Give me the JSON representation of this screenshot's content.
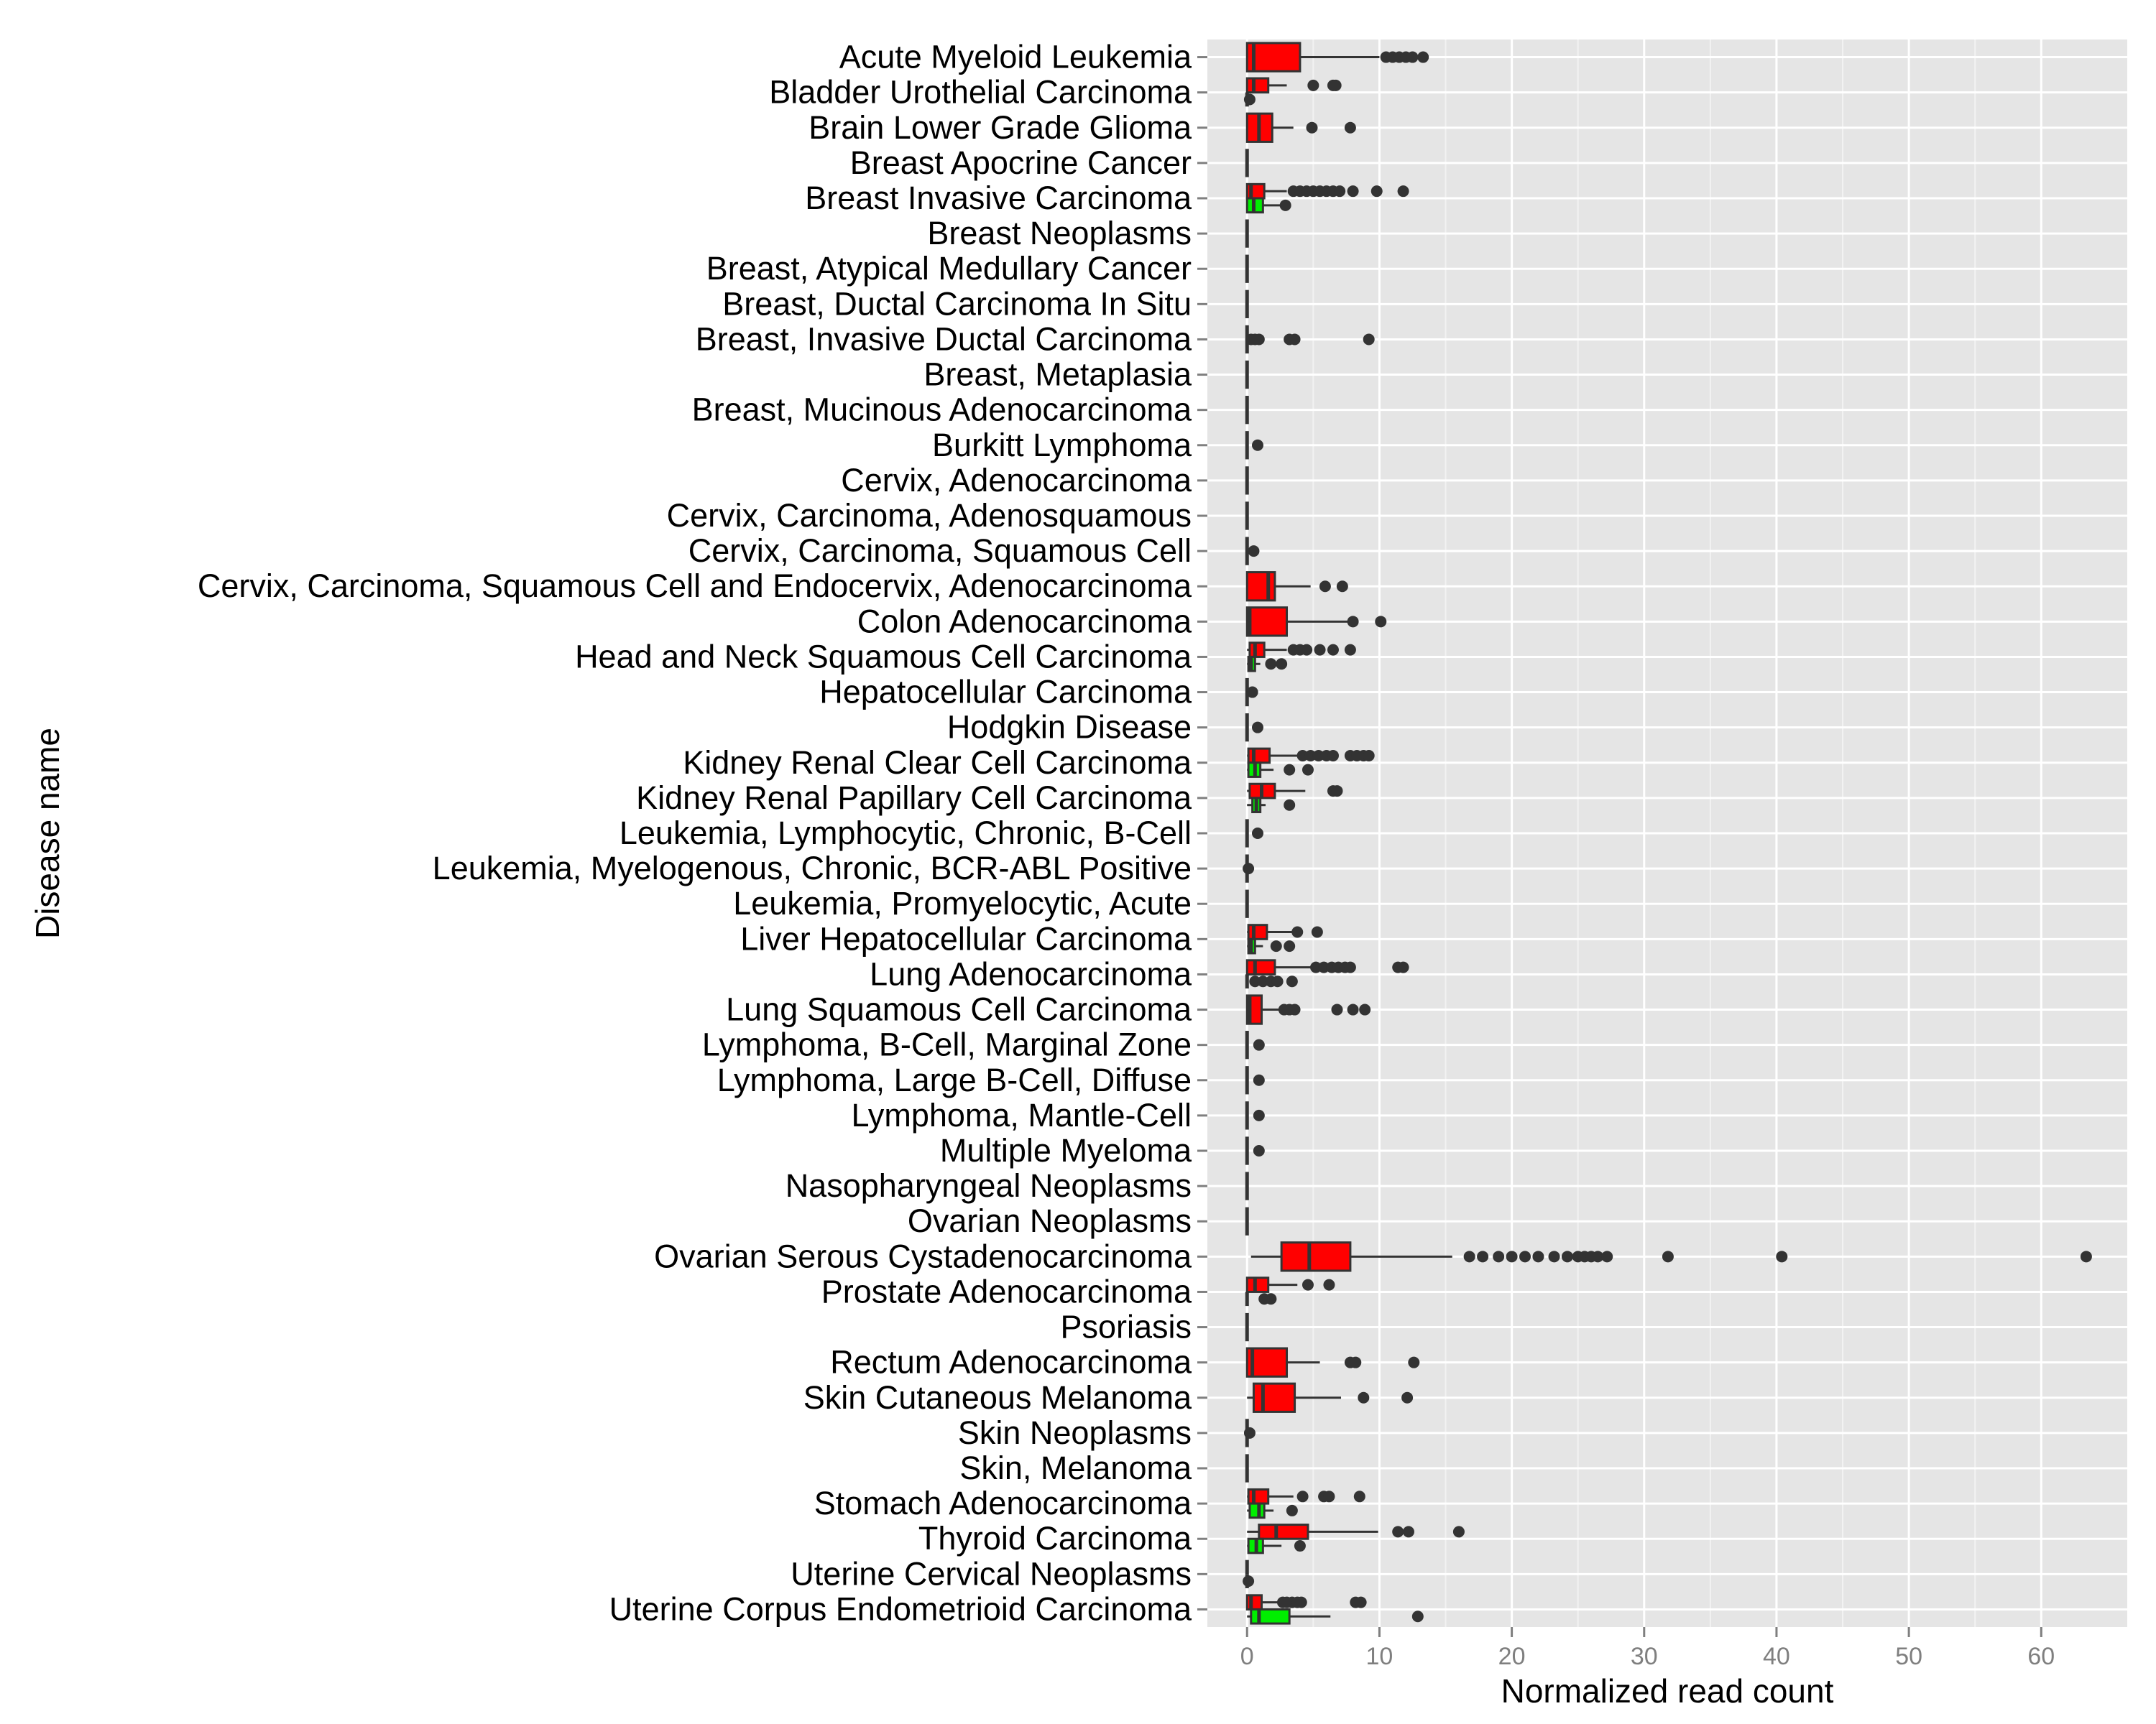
{
  "chart_data": {
    "type": "boxplot",
    "orientation": "horizontal",
    "xlabel": "Normalized read count",
    "ylabel": "Disease name",
    "xlim": [
      -3,
      66.5
    ],
    "x_ticks": [
      0,
      10,
      20,
      30,
      40,
      50,
      60
    ],
    "grid": true,
    "colors": {
      "panel": "#e5e5e5",
      "grid_major": "#ffffff",
      "grid_minor": "#f2f2f2",
      "box_a": "#ff0000",
      "box_b": "#00ee00",
      "line": "#333333",
      "outlier": "#333333",
      "tick": "#7f7f7f"
    },
    "categories": [
      "Acute Myeloid Leukemia",
      "Bladder Urothelial Carcinoma",
      "Brain Lower Grade Glioma",
      "Breast Apocrine Cancer",
      "Breast Invasive Carcinoma",
      "Breast Neoplasms",
      "Breast, Atypical Medullary Cancer",
      "Breast, Ductal Carcinoma In Situ",
      "Breast, Invasive Ductal Carcinoma",
      "Breast, Metaplasia",
      "Breast, Mucinous Adenocarcinoma",
      "Burkitt Lymphoma",
      "Cervix, Adenocarcinoma",
      "Cervix, Carcinoma, Adenosquamous",
      "Cervix, Carcinoma, Squamous Cell",
      "Cervix, Carcinoma, Squamous Cell and Endocervix, Adenocarcinoma",
      "Colon Adenocarcinoma",
      "Head and Neck Squamous Cell Carcinoma",
      "Hepatocellular Carcinoma",
      "Hodgkin Disease",
      "Kidney Renal Clear Cell Carcinoma",
      "Kidney Renal Papillary Cell Carcinoma",
      "Leukemia, Lymphocytic, Chronic, B-Cell",
      "Leukemia, Myelogenous, Chronic, BCR-ABL Positive",
      "Leukemia, Promyelocytic, Acute",
      "Liver Hepatocellular Carcinoma",
      "Lung Adenocarcinoma",
      "Lung Squamous Cell Carcinoma",
      "Lymphoma, B-Cell, Marginal Zone",
      "Lymphoma, Large B-Cell, Diffuse",
      "Lymphoma, Mantle-Cell",
      "Multiple Myeloma",
      "Nasopharyngeal Neoplasms",
      "Ovarian Neoplasms",
      "Ovarian Serous Cystadenocarcinoma",
      "Prostate Adenocarcinoma",
      "Psoriasis",
      "Rectum Adenocarcinoma",
      "Skin Cutaneous Melanoma",
      "Skin Neoplasms",
      "Skin, Melanoma",
      "Stomach Adenocarcinoma",
      "Thyroid Carcinoma",
      "Uterine Cervical Neoplasms",
      "Uterine Corpus Endometrioid Carcinoma"
    ],
    "series": [
      {
        "group": "a",
        "boxes": [
          {
            "cat": 0,
            "min": 0,
            "q1": 0,
            "median": 0.5,
            "q3": 4,
            "max": 10,
            "outliers": [
              10.5,
              11,
              11.5,
              12,
              12.5,
              13.3
            ]
          },
          {
            "cat": 1,
            "min": 0,
            "q1": 0,
            "median": 0.5,
            "q3": 1.6,
            "max": 3,
            "outliers": [
              5,
              6.5,
              6.7
            ]
          },
          {
            "cat": 2,
            "min": 0,
            "q1": 0,
            "median": 0.9,
            "q3": 1.9,
            "max": 3.5,
            "outliers": [
              4.9,
              7.8
            ]
          },
          {
            "cat": 3,
            "min": 0,
            "q1": 0,
            "median": 0,
            "q3": 0,
            "max": 0,
            "outliers": []
          },
          {
            "cat": 4,
            "min": 0,
            "q1": 0,
            "median": 0.3,
            "q3": 1.3,
            "max": 3,
            "outliers": [
              3.5,
              4,
              4.5,
              5,
              5.5,
              6,
              6.5,
              7,
              8,
              9.8,
              11.8
            ]
          },
          {
            "cat": 5,
            "min": 0,
            "q1": 0,
            "median": 0,
            "q3": 0,
            "max": 0,
            "outliers": []
          },
          {
            "cat": 6,
            "min": 0,
            "q1": 0,
            "median": 0,
            "q3": 0,
            "max": 0,
            "outliers": []
          },
          {
            "cat": 7,
            "min": 0,
            "q1": 0,
            "median": 0,
            "q3": 0,
            "max": 0,
            "outliers": []
          },
          {
            "cat": 8,
            "min": 0,
            "q1": 0,
            "median": 0,
            "q3": 0,
            "max": 0,
            "outliers": [
              0.3,
              0.6,
              0.9,
              3.2,
              3.6,
              9.2
            ]
          },
          {
            "cat": 9,
            "min": 0,
            "q1": 0,
            "median": 0,
            "q3": 0,
            "max": 0,
            "outliers": []
          },
          {
            "cat": 10,
            "min": 0,
            "q1": 0,
            "median": 0,
            "q3": 0,
            "max": 0,
            "outliers": []
          },
          {
            "cat": 11,
            "min": 0,
            "q1": 0,
            "median": 0,
            "q3": 0,
            "max": 0,
            "outliers": [
              0.8
            ]
          },
          {
            "cat": 12,
            "min": 0,
            "q1": 0,
            "median": 0,
            "q3": 0,
            "max": 0,
            "outliers": []
          },
          {
            "cat": 13,
            "min": 0,
            "q1": 0,
            "median": 0,
            "q3": 0,
            "max": 0,
            "outliers": []
          },
          {
            "cat": 14,
            "min": 0,
            "q1": 0,
            "median": 0,
            "q3": 0,
            "max": 0,
            "outliers": [
              0.5
            ]
          },
          {
            "cat": 15,
            "min": 0,
            "q1": 0,
            "median": 1.6,
            "q3": 2.1,
            "max": 4.8,
            "outliers": [
              5.9,
              7.2
            ]
          },
          {
            "cat": 16,
            "min": 0,
            "q1": 0,
            "median": 0.2,
            "q3": 3,
            "max": 7.7,
            "outliers": [
              8,
              10.1
            ]
          },
          {
            "cat": 17,
            "min": 0,
            "q1": 0.2,
            "median": 0.6,
            "q3": 1.3,
            "max": 3,
            "outliers": [
              3.5,
              4,
              4.5,
              5.5,
              6.5,
              7.8
            ]
          },
          {
            "cat": 18,
            "min": 0,
            "q1": 0,
            "median": 0,
            "q3": 0,
            "max": 0,
            "outliers": [
              0.4
            ]
          },
          {
            "cat": 19,
            "min": 0,
            "q1": 0,
            "median": 0,
            "q3": 0,
            "max": 0,
            "outliers": [
              0.8
            ]
          },
          {
            "cat": 20,
            "min": 0,
            "q1": 0.1,
            "median": 0.5,
            "q3": 1.7,
            "max": 4,
            "outliers": [
              4.2,
              4.8,
              5.4,
              6,
              6.5,
              7.8,
              8.3,
              8.8,
              9.2
            ]
          },
          {
            "cat": 21,
            "min": 0,
            "q1": 0.2,
            "median": 1.1,
            "q3": 2.1,
            "max": 4.4,
            "outliers": [
              6.5,
              6.8
            ]
          },
          {
            "cat": 22,
            "min": 0,
            "q1": 0,
            "median": 0,
            "q3": 0,
            "max": 0,
            "outliers": [
              0.8
            ]
          },
          {
            "cat": 23,
            "min": 0,
            "q1": 0,
            "median": 0,
            "q3": 0,
            "max": 0,
            "outliers": [
              0.1
            ]
          },
          {
            "cat": 24,
            "min": 0,
            "q1": 0,
            "median": 0,
            "q3": 0,
            "max": 0,
            "outliers": []
          },
          {
            "cat": 25,
            "min": 0,
            "q1": 0.1,
            "median": 0.5,
            "q3": 1.5,
            "max": 3.5,
            "outliers": [
              3.8,
              5.3
            ]
          },
          {
            "cat": 26,
            "min": 0,
            "q1": 0,
            "median": 0.6,
            "q3": 2.1,
            "max": 4.9,
            "outliers": [
              5.2,
              5.8,
              6.4,
              6.9,
              7.4,
              7.8,
              11.4,
              11.8
            ]
          },
          {
            "cat": 27,
            "min": 0,
            "q1": 0,
            "median": 0.2,
            "q3": 1.1,
            "max": 2.4,
            "outliers": [
              2.8,
              3.2,
              3.6,
              6.8,
              8,
              8.9
            ]
          },
          {
            "cat": 28,
            "min": 0,
            "q1": 0,
            "median": 0,
            "q3": 0,
            "max": 0,
            "outliers": [
              0.9
            ]
          },
          {
            "cat": 29,
            "min": 0,
            "q1": 0,
            "median": 0,
            "q3": 0,
            "max": 0,
            "outliers": [
              0.9
            ]
          },
          {
            "cat": 30,
            "min": 0,
            "q1": 0,
            "median": 0,
            "q3": 0,
            "max": 0,
            "outliers": [
              0.9
            ]
          },
          {
            "cat": 31,
            "min": 0,
            "q1": 0,
            "median": 0,
            "q3": 0,
            "max": 0,
            "outliers": [
              0.9
            ]
          },
          {
            "cat": 32,
            "min": 0,
            "q1": 0,
            "median": 0,
            "q3": 0,
            "max": 0,
            "outliers": []
          },
          {
            "cat": 33,
            "min": 0,
            "q1": 0,
            "median": 0,
            "q3": 0,
            "max": 0,
            "outliers": []
          },
          {
            "cat": 34,
            "min": 0.3,
            "q1": 2.6,
            "median": 4.7,
            "q3": 7.8,
            "max": 15.5,
            "outliers": [
              16.8,
              17.8,
              19,
              20,
              21,
              22,
              23.2,
              24.2,
              25,
              25.5,
              26,
              26.5,
              27.2,
              31.8,
              40.4,
              63.4
            ]
          },
          {
            "cat": 35,
            "min": 0,
            "q1": 0,
            "median": 0.6,
            "q3": 1.6,
            "max": 3.8,
            "outliers": [
              4.6,
              6.2
            ]
          },
          {
            "cat": 36,
            "min": 0,
            "q1": 0,
            "median": 0,
            "q3": 0,
            "max": 0,
            "outliers": []
          },
          {
            "cat": 37,
            "min": 0,
            "q1": 0,
            "median": 0.4,
            "q3": 3,
            "max": 5.5,
            "outliers": [
              7.8,
              8.2,
              12.6
            ]
          },
          {
            "cat": 38,
            "min": 0,
            "q1": 0.5,
            "median": 1.2,
            "q3": 3.6,
            "max": 7.1,
            "outliers": [
              8.8,
              12.1
            ]
          },
          {
            "cat": 39,
            "min": 0,
            "q1": 0,
            "median": 0,
            "q3": 0,
            "max": 0,
            "outliers": [
              0.2
            ]
          },
          {
            "cat": 40,
            "min": 0,
            "q1": 0,
            "median": 0,
            "q3": 0,
            "max": 0,
            "outliers": []
          },
          {
            "cat": 41,
            "min": 0,
            "q1": 0.1,
            "median": 0.5,
            "q3": 1.6,
            "max": 3.5,
            "outliers": [
              4.2,
              5.8,
              6.2,
              8.5
            ]
          },
          {
            "cat": 42,
            "min": 0,
            "q1": 0.9,
            "median": 2.2,
            "q3": 4.6,
            "max": 9.9,
            "outliers": [
              11.4,
              12.2,
              16
            ]
          },
          {
            "cat": 43,
            "min": 0,
            "q1": 0,
            "median": 0,
            "q3": 0,
            "max": 0,
            "outliers": []
          },
          {
            "cat": 44,
            "min": 0,
            "q1": 0,
            "median": 0.3,
            "q3": 1.1,
            "max": 2.4,
            "outliers": [
              2.7,
              3,
              3.4,
              3.8,
              4.1,
              8.2,
              8.6
            ]
          }
        ]
      },
      {
        "group": "b",
        "boxes": [
          {
            "cat": 1,
            "min": 0,
            "q1": 0,
            "median": 0,
            "q3": 0,
            "max": 0,
            "outliers": [
              0.2
            ]
          },
          {
            "cat": 4,
            "min": 0,
            "q1": 0,
            "median": 0.5,
            "q3": 1.2,
            "max": 2.5,
            "outliers": [
              2.9
            ]
          },
          {
            "cat": 17,
            "min": 0,
            "q1": 0.1,
            "median": 0.3,
            "q3": 0.6,
            "max": 1,
            "outliers": [
              1.8,
              2.6
            ]
          },
          {
            "cat": 20,
            "min": 0,
            "q1": 0.1,
            "median": 0.6,
            "q3": 1,
            "max": 2,
            "outliers": [
              3.2,
              4.6
            ]
          },
          {
            "cat": 21,
            "min": 0,
            "q1": 0.4,
            "median": 0.7,
            "q3": 1,
            "max": 1.4,
            "outliers": [
              3.2
            ]
          },
          {
            "cat": 25,
            "min": 0,
            "q1": 0.1,
            "median": 0.3,
            "q3": 0.6,
            "max": 1.2,
            "outliers": [
              2.2,
              3.2
            ]
          },
          {
            "cat": 26,
            "min": 0,
            "q1": 0,
            "median": 0,
            "q3": 0,
            "max": 0,
            "outliers": [
              0.6,
              1.2,
              1.8,
              2.3,
              3.4
            ]
          },
          {
            "cat": 35,
            "min": 0,
            "q1": 0,
            "median": 0,
            "q3": 0,
            "max": 0,
            "outliers": [
              1.3,
              1.8
            ]
          },
          {
            "cat": 41,
            "min": 0,
            "q1": 0.2,
            "median": 0.9,
            "q3": 1.3,
            "max": 2,
            "outliers": [
              3.4
            ]
          },
          {
            "cat": 42,
            "min": 0,
            "q1": 0.1,
            "median": 0.7,
            "q3": 1.2,
            "max": 2.6,
            "outliers": [
              4
            ]
          },
          {
            "cat": 43,
            "min": 0,
            "q1": 0,
            "median": 0,
            "q3": 0,
            "max": 0,
            "outliers": [
              0.1
            ]
          },
          {
            "cat": 44,
            "min": 0,
            "q1": 0.3,
            "median": 0.9,
            "q3": 3.2,
            "max": 6.3,
            "outliers": [
              12.9
            ]
          }
        ]
      }
    ]
  }
}
